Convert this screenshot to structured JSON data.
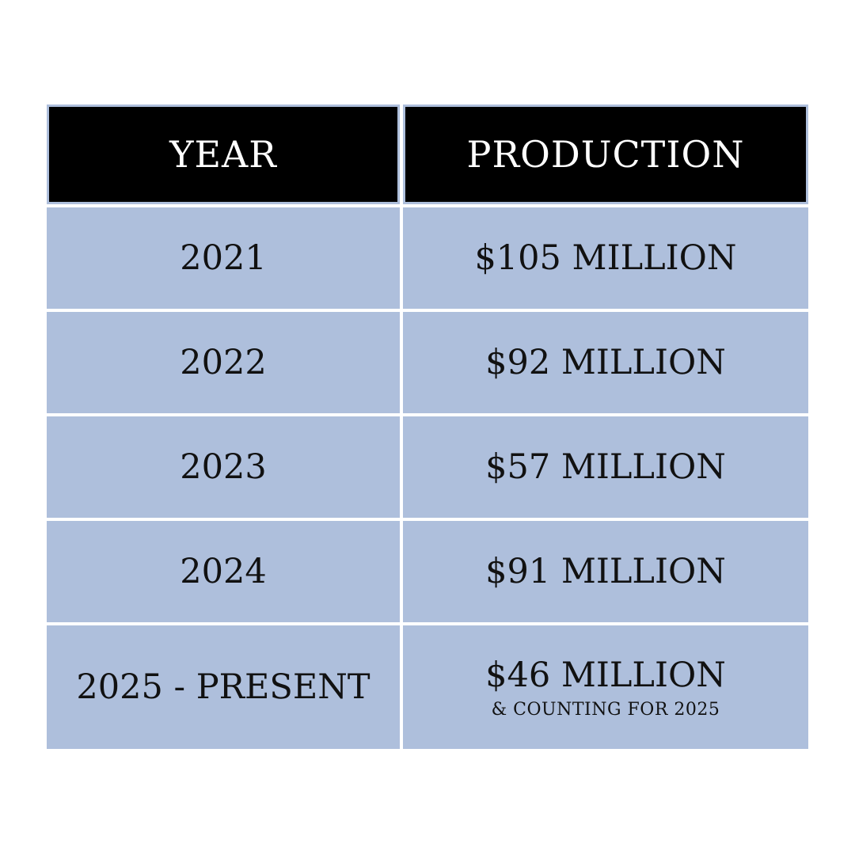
{
  "chart_data": {
    "type": "table",
    "columns": [
      "YEAR",
      "PRODUCTION"
    ],
    "rows": [
      {
        "year": "2021",
        "production": "$105 MILLION",
        "note": ""
      },
      {
        "year": "2022",
        "production": "$92 MILLION",
        "note": ""
      },
      {
        "year": "2023",
        "production": "$57 MILLION",
        "note": ""
      },
      {
        "year": "2024",
        "production": "$91 MILLION",
        "note": ""
      },
      {
        "year": "2025 - PRESENT",
        "production": "$46 MILLION",
        "note": "& COUNTING FOR 2025"
      }
    ]
  },
  "colors": {
    "header_bg": "#000000",
    "header_text": "#ffffff",
    "cell_bg": "#aebfdc",
    "cell_text": "#111111"
  }
}
